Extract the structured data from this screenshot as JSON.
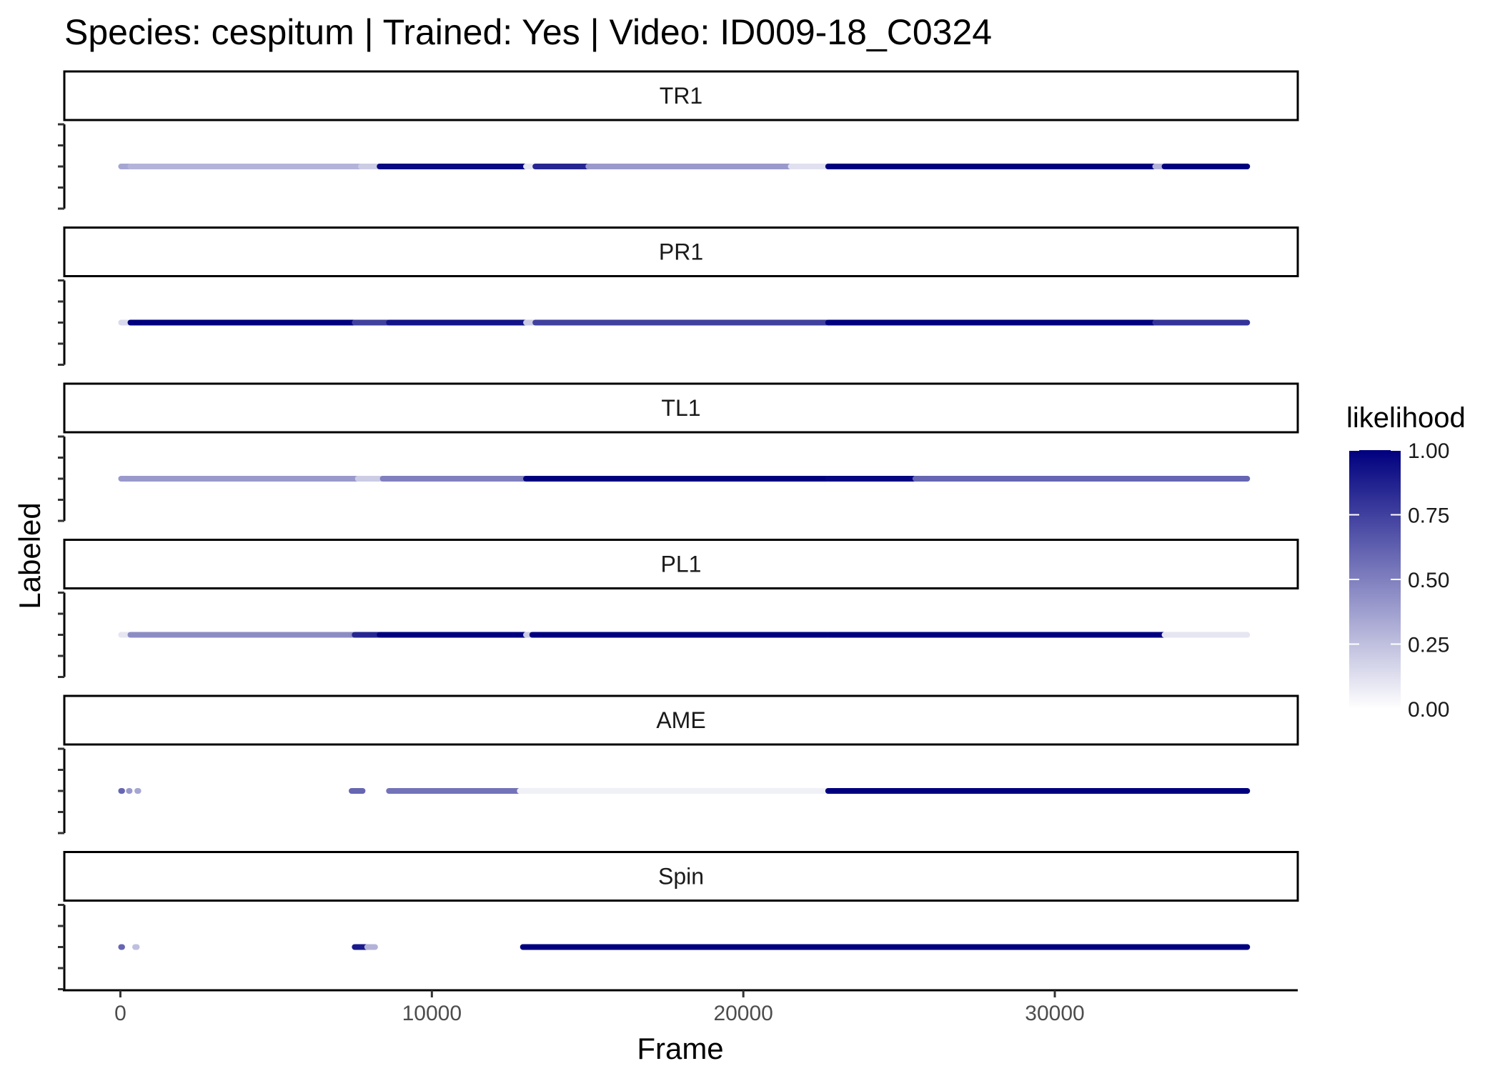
{
  "chart_data": {
    "type": "scatter",
    "title": "Species: cespitum | Trained: Yes | Video: ID009-18_C0324",
    "xlabel": "Frame",
    "ylabel": "Labeled",
    "xlim": [
      -1800,
      37800
    ],
    "x_ticks": [
      0,
      10000,
      20000,
      30000
    ],
    "color_scale": {
      "name": "likelihood",
      "low_color": "#ffffff",
      "high_color": "#00007f",
      "range": [
        0,
        1
      ],
      "ticks": [
        "0.00",
        "0.25",
        "0.50",
        "0.75",
        "1.00"
      ]
    },
    "panels": [
      {
        "name": "TR1",
        "segments": [
          {
            "start": 0,
            "end": 300,
            "likelihood": 0.35
          },
          {
            "start": 300,
            "end": 7700,
            "likelihood": 0.3
          },
          {
            "start": 7700,
            "end": 8300,
            "likelihood": 0.2
          },
          {
            "start": 8300,
            "end": 13000,
            "likelihood": 0.97
          },
          {
            "start": 13000,
            "end": 13300,
            "likelihood": 0.1
          },
          {
            "start": 13300,
            "end": 15000,
            "likelihood": 0.85
          },
          {
            "start": 15000,
            "end": 21500,
            "likelihood": 0.4
          },
          {
            "start": 21500,
            "end": 22700,
            "likelihood": 0.12
          },
          {
            "start": 22700,
            "end": 33200,
            "likelihood": 1.0
          },
          {
            "start": 33200,
            "end": 33500,
            "likelihood": 0.3
          },
          {
            "start": 33500,
            "end": 36200,
            "likelihood": 1.0
          }
        ]
      },
      {
        "name": "PR1",
        "segments": [
          {
            "start": 0,
            "end": 300,
            "likelihood": 0.15
          },
          {
            "start": 300,
            "end": 7500,
            "likelihood": 1.0
          },
          {
            "start": 7500,
            "end": 8600,
            "likelihood": 0.75
          },
          {
            "start": 8600,
            "end": 13000,
            "likelihood": 0.92
          },
          {
            "start": 13000,
            "end": 13300,
            "likelihood": 0.2
          },
          {
            "start": 13300,
            "end": 22700,
            "likelihood": 0.75
          },
          {
            "start": 22700,
            "end": 33200,
            "likelihood": 1.0
          },
          {
            "start": 33200,
            "end": 36200,
            "likelihood": 0.8
          }
        ]
      },
      {
        "name": "TL1",
        "segments": [
          {
            "start": 0,
            "end": 7600,
            "likelihood": 0.4
          },
          {
            "start": 7600,
            "end": 8400,
            "likelihood": 0.2
          },
          {
            "start": 8400,
            "end": 13000,
            "likelihood": 0.5
          },
          {
            "start": 13000,
            "end": 22700,
            "likelihood": 1.0
          },
          {
            "start": 22700,
            "end": 25500,
            "likelihood": 0.98
          },
          {
            "start": 25500,
            "end": 36200,
            "likelihood": 0.6
          }
        ]
      },
      {
        "name": "PL1",
        "segments": [
          {
            "start": 0,
            "end": 300,
            "likelihood": 0.1
          },
          {
            "start": 300,
            "end": 7500,
            "likelihood": 0.45
          },
          {
            "start": 7500,
            "end": 8300,
            "likelihood": 0.85
          },
          {
            "start": 8300,
            "end": 13000,
            "likelihood": 1.0
          },
          {
            "start": 13000,
            "end": 13200,
            "likelihood": 0.2
          },
          {
            "start": 13200,
            "end": 22700,
            "likelihood": 1.0
          },
          {
            "start": 22700,
            "end": 33500,
            "likelihood": 1.0
          },
          {
            "start": 33500,
            "end": 36200,
            "likelihood": 0.1
          }
        ]
      },
      {
        "name": "AME",
        "segments": [
          {
            "start": 0,
            "end": 80,
            "likelihood": 0.6
          },
          {
            "start": 250,
            "end": 320,
            "likelihood": 0.4
          },
          {
            "start": 520,
            "end": 600,
            "likelihood": 0.35
          },
          {
            "start": 7400,
            "end": 7800,
            "likelihood": 0.6
          },
          {
            "start": 8600,
            "end": 12800,
            "likelihood": 0.55
          },
          {
            "start": 12800,
            "end": 22700,
            "likelihood": 0.06
          },
          {
            "start": 22700,
            "end": 36200,
            "likelihood": 1.0
          }
        ]
      },
      {
        "name": "Spin",
        "segments": [
          {
            "start": 0,
            "end": 80,
            "likelihood": 0.6
          },
          {
            "start": 450,
            "end": 550,
            "likelihood": 0.25
          },
          {
            "start": 7500,
            "end": 7900,
            "likelihood": 0.9
          },
          {
            "start": 7900,
            "end": 8200,
            "likelihood": 0.3
          },
          {
            "start": 12900,
            "end": 36200,
            "likelihood": 1.0
          }
        ]
      }
    ]
  }
}
